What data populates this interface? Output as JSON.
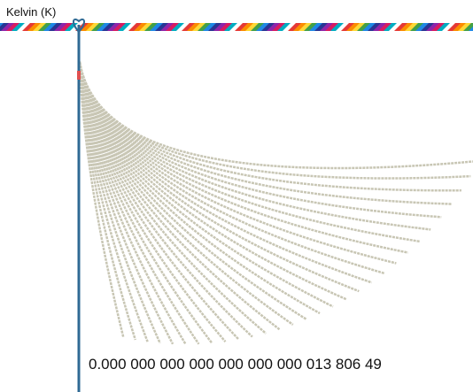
{
  "label": "Kelvin (K)",
  "value_text": "0.000 000 000 000 000 000 000 013 806 49"
}
